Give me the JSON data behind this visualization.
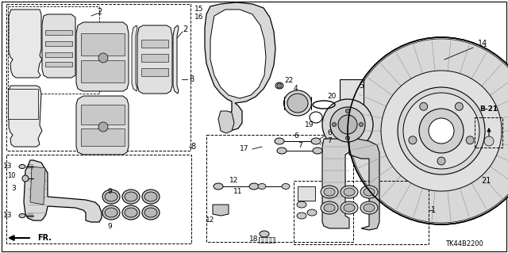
{
  "background_color": "#ffffff",
  "catalog_number": "TK44B2200",
  "figsize": [
    6.4,
    3.19
  ],
  "dpi": 100
}
